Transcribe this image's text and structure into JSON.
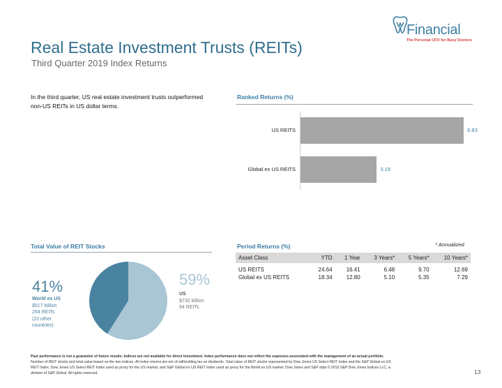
{
  "header": {
    "title": "Real Estate Investment Trusts (REITs)",
    "subtitle": "Third Quarter 2019 Index Returns",
    "logo_name": "Financial",
    "logo_tagline": "The Personal CFO for Busy Doctors",
    "logo_color": "#3f7fa3"
  },
  "intro": {
    "text": "In the third quarter, US real estate investment trusts outperformed non-US REITs in US dollar terms."
  },
  "ranked": {
    "title": "Ranked Returns (%)"
  },
  "chart_data": [
    {
      "type": "bar",
      "orientation": "horizontal",
      "title": "Ranked Returns (%)",
      "categories": [
        "US REITS",
        "Global ex US REITS"
      ],
      "values": [
        6.83,
        3.19
      ],
      "value_labels": [
        "6.83",
        "3.19"
      ],
      "xlim": [
        0,
        7
      ],
      "bar_color": "#a6a6a6",
      "grid": false
    },
    {
      "type": "pie",
      "title": "Total Value of REIT Stocks",
      "slices": [
        {
          "name": "US",
          "percent": 59,
          "color": "#a8c6d4"
        },
        {
          "name": "World ex US",
          "percent": 41,
          "color": "#4a83a0"
        }
      ]
    }
  ],
  "total_value": {
    "title": "Total Value of REIT Stocks",
    "left": {
      "percent": "41%",
      "name": "World ex US",
      "value": "$517 billion",
      "count": "254 REITs",
      "extra1": "(22 other",
      "extra2": "countries)",
      "color": "#4a83a0"
    },
    "right": {
      "percent": "59%",
      "name": "US",
      "value": "$730 billion",
      "count": "94 REITs",
      "color": "#a8c6d4"
    }
  },
  "period": {
    "title": "Period Returns (%)",
    "note": "* Annualized",
    "columns": [
      "Asset Class",
      "YTD",
      "1 Year",
      "3 Years*",
      "5 Years*",
      "10 Years*"
    ],
    "rows": [
      [
        "US REITS",
        "24.64",
        "16.41",
        "6.48",
        "9.70",
        "12.69"
      ],
      [
        "Global ex US REITS",
        "18.34",
        "12.80",
        "5.10",
        "5.35",
        "7.29"
      ]
    ]
  },
  "footer": {
    "bold_line": "Past performance is not a guarantee of future results. Indices are not available for direct investment. Index performance does not reflect the expenses associated with the management of an actual portfolio.",
    "line2": "Number of REIT stocks and total value based on the two indices. All index returns are net of withholding tax on dividends. Total value of REIT stocks represented by Dow Jones US Select REIT Index and the S&P Global ex US",
    "line3": "REIT Index. Dow Jones US Select REIT Index used as proxy for the US market, and S&P Global ex US REIT Index used as proxy for the World ex US market. Dow Jones and S&P data © 2019 S&P Dow Jones Indices LLC, a",
    "line4": "division of S&P Global. All rights reserved.",
    "page_number": "13"
  }
}
